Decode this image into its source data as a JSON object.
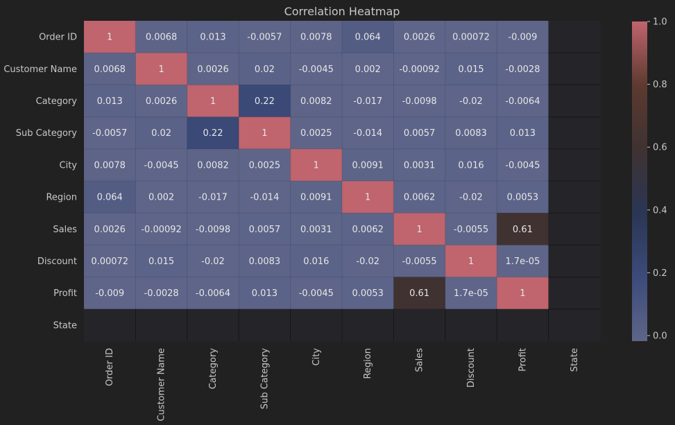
{
  "chart_data": {
    "type": "heatmap",
    "title": "Correlation Heatmap",
    "rows": [
      "Order ID",
      "Customer Name",
      "Category",
      "Sub Category",
      "City",
      "Region",
      "Sales",
      "Discount",
      "Profit",
      "State"
    ],
    "columns": [
      "Order ID",
      "Customer Name",
      "Category",
      "Sub Category",
      "City",
      "Region",
      "Sales",
      "Discount",
      "Profit",
      "State"
    ],
    "values": [
      [
        1,
        0.0068,
        0.013,
        -0.0057,
        0.0078,
        0.064,
        0.0026,
        0.00072,
        -0.009,
        null
      ],
      [
        0.0068,
        1,
        0.0026,
        0.02,
        -0.0045,
        0.002,
        -0.00092,
        0.015,
        -0.0028,
        null
      ],
      [
        0.013,
        0.0026,
        1,
        0.22,
        0.0082,
        -0.017,
        -0.0098,
        -0.02,
        -0.0064,
        null
      ],
      [
        -0.0057,
        0.02,
        0.22,
        1,
        0.0025,
        -0.014,
        0.0057,
        0.0083,
        0.013,
        null
      ],
      [
        0.0078,
        -0.0045,
        0.0082,
        0.0025,
        1,
        0.0091,
        0.0031,
        0.016,
        -0.0045,
        null
      ],
      [
        0.064,
        0.002,
        -0.017,
        -0.014,
        0.0091,
        1,
        0.0062,
        -0.02,
        0.0053,
        null
      ],
      [
        0.0026,
        -0.00092,
        -0.0098,
        0.0057,
        0.0031,
        0.0062,
        1,
        -0.0055,
        0.61,
        null
      ],
      [
        0.00072,
        0.015,
        -0.02,
        0.0083,
        0.016,
        -0.02,
        -0.0055,
        1,
        1.7e-05,
        null
      ],
      [
        -0.009,
        -0.0028,
        -0.0064,
        0.013,
        -0.0045,
        0.0053,
        0.61,
        1.7e-05,
        1,
        null
      ],
      [
        null,
        null,
        null,
        null,
        null,
        null,
        null,
        null,
        null,
        null
      ]
    ],
    "labels": [
      [
        "1",
        "0.0068",
        "0.013",
        "-0.0057",
        "0.0078",
        "0.064",
        "0.0026",
        "0.00072",
        "-0.009",
        ""
      ],
      [
        "0.0068",
        "1",
        "0.0026",
        "0.02",
        "-0.0045",
        "0.002",
        "-0.00092",
        "0.015",
        "-0.0028",
        ""
      ],
      [
        "0.013",
        "0.0026",
        "1",
        "0.22",
        "0.0082",
        "-0.017",
        "-0.0098",
        "-0.02",
        "-0.0064",
        ""
      ],
      [
        "-0.0057",
        "0.02",
        "0.22",
        "1",
        "0.0025",
        "-0.014",
        "0.0057",
        "0.0083",
        "0.013",
        ""
      ],
      [
        "0.0078",
        "-0.0045",
        "0.0082",
        "0.0025",
        "1",
        "0.0091",
        "0.0031",
        "0.016",
        "-0.0045",
        ""
      ],
      [
        "0.064",
        "0.002",
        "-0.017",
        "-0.014",
        "0.0091",
        "1",
        "0.0062",
        "-0.02",
        "0.0053",
        ""
      ],
      [
        "0.0026",
        "-0.00092",
        "-0.0098",
        "0.0057",
        "0.0031",
        "0.0062",
        "1",
        "-0.0055",
        "0.61",
        ""
      ],
      [
        "0.00072",
        "0.015",
        "-0.02",
        "0.0083",
        "0.016",
        "-0.02",
        "-0.0055",
        "1",
        "1.7e-05",
        ""
      ],
      [
        "-0.009",
        "-0.0028",
        "-0.0064",
        "0.013",
        "-0.0045",
        "0.0053",
        "0.61",
        "1.7e-05",
        "1",
        ""
      ],
      [
        "",
        "",
        "",
        "",
        "",
        "",
        "",
        "",
        "",
        ""
      ]
    ],
    "colorbar": {
      "range": [
        0,
        1
      ],
      "ticks": [
        0.0,
        0.2,
        0.4,
        0.6,
        0.8,
        1.0
      ],
      "tick_labels": [
        "0.0",
        "0.2",
        "0.4",
        "0.6",
        "0.8",
        "1.0"
      ],
      "colors": [
        "#5e6589",
        "#3c4b7a",
        "#2a3654",
        "#3f3232",
        "#5d3a2f",
        "#c0646e"
      ]
    },
    "grid": true,
    "background_color": "#212121",
    "empty_cell_color": "#252529"
  }
}
